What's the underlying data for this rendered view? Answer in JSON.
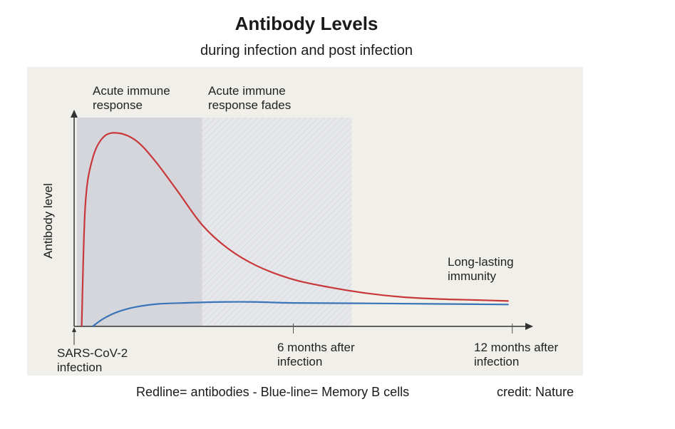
{
  "chart_data": {
    "type": "line",
    "title": "Antibody Levels",
    "subtitle": "during infection and post infection",
    "ylabel": "Antibody level",
    "xlabel": "",
    "x_ticks": [
      {
        "x": 0,
        "label": "SARS-CoV-2 infection"
      },
      {
        "x": 6,
        "label": "6 months after infection"
      },
      {
        "x": 12,
        "label": "12 months after infection"
      }
    ],
    "xlim": [
      0,
      13
    ],
    "ylim": [
      0,
      1
    ],
    "phases": [
      {
        "label": "Acute immune response",
        "x_range": [
          0,
          3.5
        ],
        "color": "#d5d6dc"
      },
      {
        "label": "Acute immune response fades",
        "x_range": [
          3.5,
          7.6
        ],
        "color": "#e4e5e9"
      }
    ],
    "series": [
      {
        "color": "#c8383a",
        "x": [
          0.2,
          0.3,
          0.5,
          0.8,
          1.2,
          1.7,
          2.2,
          2.8,
          3.5,
          4.2,
          5,
          6,
          7,
          8,
          9,
          10,
          11,
          11.9
        ],
        "y": [
          0.0,
          0.62,
          0.86,
          0.97,
          0.99,
          0.95,
          0.85,
          0.7,
          0.52,
          0.4,
          0.31,
          0.24,
          0.2,
          0.17,
          0.15,
          0.14,
          0.135,
          0.13
        ]
      },
      {
        "color": "#3a74b8",
        "x": [
          0.5,
          0.8,
          1.2,
          1.7,
          2.3,
          3.0,
          4.0,
          5.0,
          6.0,
          8.0,
          10.0,
          11.9
        ],
        "y": [
          0.0,
          0.04,
          0.075,
          0.1,
          0.115,
          0.12,
          0.125,
          0.125,
          0.12,
          0.118,
          0.115,
          0.112
        ]
      }
    ],
    "annotations": [
      {
        "text": "Long-lasting immunity",
        "x": 10.4,
        "y": 0.3
      }
    ]
  },
  "footer": {
    "legend_text": "Redline= antibodies - Blue-line= Memory B cells",
    "credit": "credit: Nature"
  }
}
